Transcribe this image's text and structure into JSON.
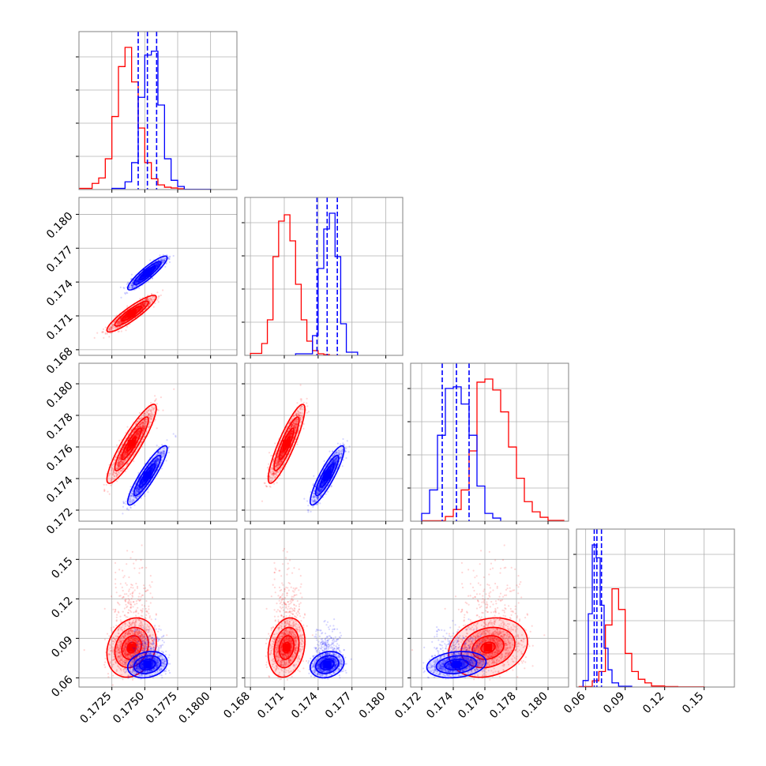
{
  "chart_data": {
    "type": "corner",
    "title": "",
    "colors": {
      "series_a": "#ff0000",
      "series_b": "#0000ff",
      "grid": "#b0b0b0",
      "axes": "#808080"
    },
    "series_names": [],
    "dims": [
      {
        "range": [
          0.17,
          0.182
        ],
        "ticks": [
          0.1725,
          0.175,
          0.1775,
          0.18
        ],
        "tick_labels": [
          "0.1725",
          "0.1750",
          "0.1775",
          "0.1800"
        ]
      },
      {
        "range": [
          0.1675,
          0.1815
        ],
        "ticks": [
          0.168,
          0.171,
          0.174,
          0.177,
          0.18
        ],
        "tick_labels": [
          "0.168",
          "0.171",
          "0.174",
          "0.177",
          "0.180"
        ]
      },
      {
        "range": [
          0.1713,
          0.1813
        ],
        "ticks": [
          0.172,
          0.174,
          0.176,
          0.178,
          0.18
        ],
        "tick_labels": [
          "0.172",
          "0.174",
          "0.176",
          "0.178",
          "0.180"
        ]
      },
      {
        "range": [
          0.053,
          0.173
        ],
        "ticks": [
          0.06,
          0.09,
          0.12,
          0.15
        ],
        "tick_labels": [
          "0.06",
          "0.09",
          "0.12",
          "0.15"
        ]
      }
    ],
    "series": [
      {
        "color": "#ff0000",
        "mean": [
          0.174,
          0.1712,
          0.1762,
          0.083
        ],
        "sd": [
          0.00075,
          0.00065,
          0.001,
          0.009
        ],
        "corr": {
          "0-1": 0.9,
          "0-2": 0.9,
          "1-2": 0.88,
          "0-3": 0.2,
          "1-3": 0.2,
          "2-3": 0.2
        },
        "hist": [
          {
            "bins": [
              0.17,
              0.171,
              0.1715,
              0.172,
              0.1725,
              0.173,
              0.1735,
              0.174,
              0.1745,
              0.175,
              0.1755,
              0.176,
              0.1765,
              0.177,
              0.1775,
              0.178,
              0.18
            ],
            "counts": [
              3,
              8,
              15,
              40,
              95,
              160,
              185,
              140,
              80,
              35,
              14,
              6,
              3,
              2,
              1,
              0
            ]
          },
          {
            "bins": [
              0.168,
              0.169,
              0.1695,
              0.17,
              0.1705,
              0.171,
              0.1715,
              0.172,
              0.1725,
              0.173,
              0.1735,
              0.174,
              0.1745,
              0.175,
              0.176
            ],
            "counts": [
              5,
              15,
              45,
              125,
              170,
              178,
              145,
              90,
              45,
              18,
              6,
              2,
              1,
              0
            ]
          },
          {
            "bins": [
              0.172,
              0.1735,
              0.174,
              0.1745,
              0.175,
              0.1755,
              0.176,
              0.1765,
              0.177,
              0.1775,
              0.178,
              0.1785,
              0.179,
              0.1795,
              0.18,
              0.181
            ],
            "counts": [
              2,
              6,
              15,
              40,
              90,
              178,
              182,
              168,
              140,
              95,
              55,
              25,
              12,
              5,
              2
            ]
          },
          {
            "bins": [
              0.055,
              0.065,
              0.07,
              0.075,
              0.08,
              0.085,
              0.09,
              0.095,
              0.1,
              0.105,
              0.11,
              0.12,
              0.13,
              0.15
            ],
            "counts": [
              2,
              12,
              30,
              120,
              190,
              150,
              65,
              30,
              15,
              8,
              4,
              2,
              1
            ]
          }
        ]
      },
      {
        "color": "#0000ff",
        "mean": [
          0.1752,
          0.1748,
          0.1742,
          0.07
        ],
        "sd": [
          0.0006,
          0.0006,
          0.00075,
          0.004
        ],
        "corr": {
          "0-1": 0.9,
          "0-2": 0.9,
          "1-2": 0.88,
          "0-3": 0.2,
          "1-3": 0.2,
          "2-3": 0.2
        },
        "quantiles": [
          [
            0.1745,
            0.1752,
            0.1759
          ],
          [
            0.1739,
            0.1748,
            0.1757
          ],
          [
            0.1733,
            0.1742,
            0.175
          ],
          [
            0.0665,
            0.0685,
            0.072
          ]
        ],
        "hist": [
          {
            "bins": [
              0.1725,
              0.1735,
              0.174,
              0.1745,
              0.175,
              0.1755,
              0.176,
              0.1765,
              0.177,
              0.1775,
              0.178,
              0.18
            ],
            "counts": [
              3,
              10,
              35,
              120,
              175,
              180,
              110,
              40,
              12,
              4,
              1
            ]
          },
          {
            "bins": [
              0.172,
              0.1735,
              0.174,
              0.1745,
              0.175,
              0.1755,
              0.176,
              0.1765,
              0.1775
            ],
            "counts": [
              6,
              25,
              110,
              160,
              180,
              125,
              40,
              8
            ]
          },
          {
            "bins": [
              0.172,
              0.1725,
              0.173,
              0.1735,
              0.174,
              0.1745,
              0.175,
              0.1755,
              0.176,
              0.1765,
              0.177
            ],
            "counts": [
              10,
              40,
              110,
              170,
              172,
              150,
              110,
              45,
              10,
              4
            ]
          },
          {
            "bins": [
              0.058,
              0.062,
              0.065,
              0.068,
              0.071,
              0.074,
              0.077,
              0.08,
              0.085,
              0.095
            ],
            "counts": [
              10,
              85,
              165,
              150,
              95,
              45,
              20,
              8,
              3
            ]
          }
        ]
      }
    ]
  }
}
